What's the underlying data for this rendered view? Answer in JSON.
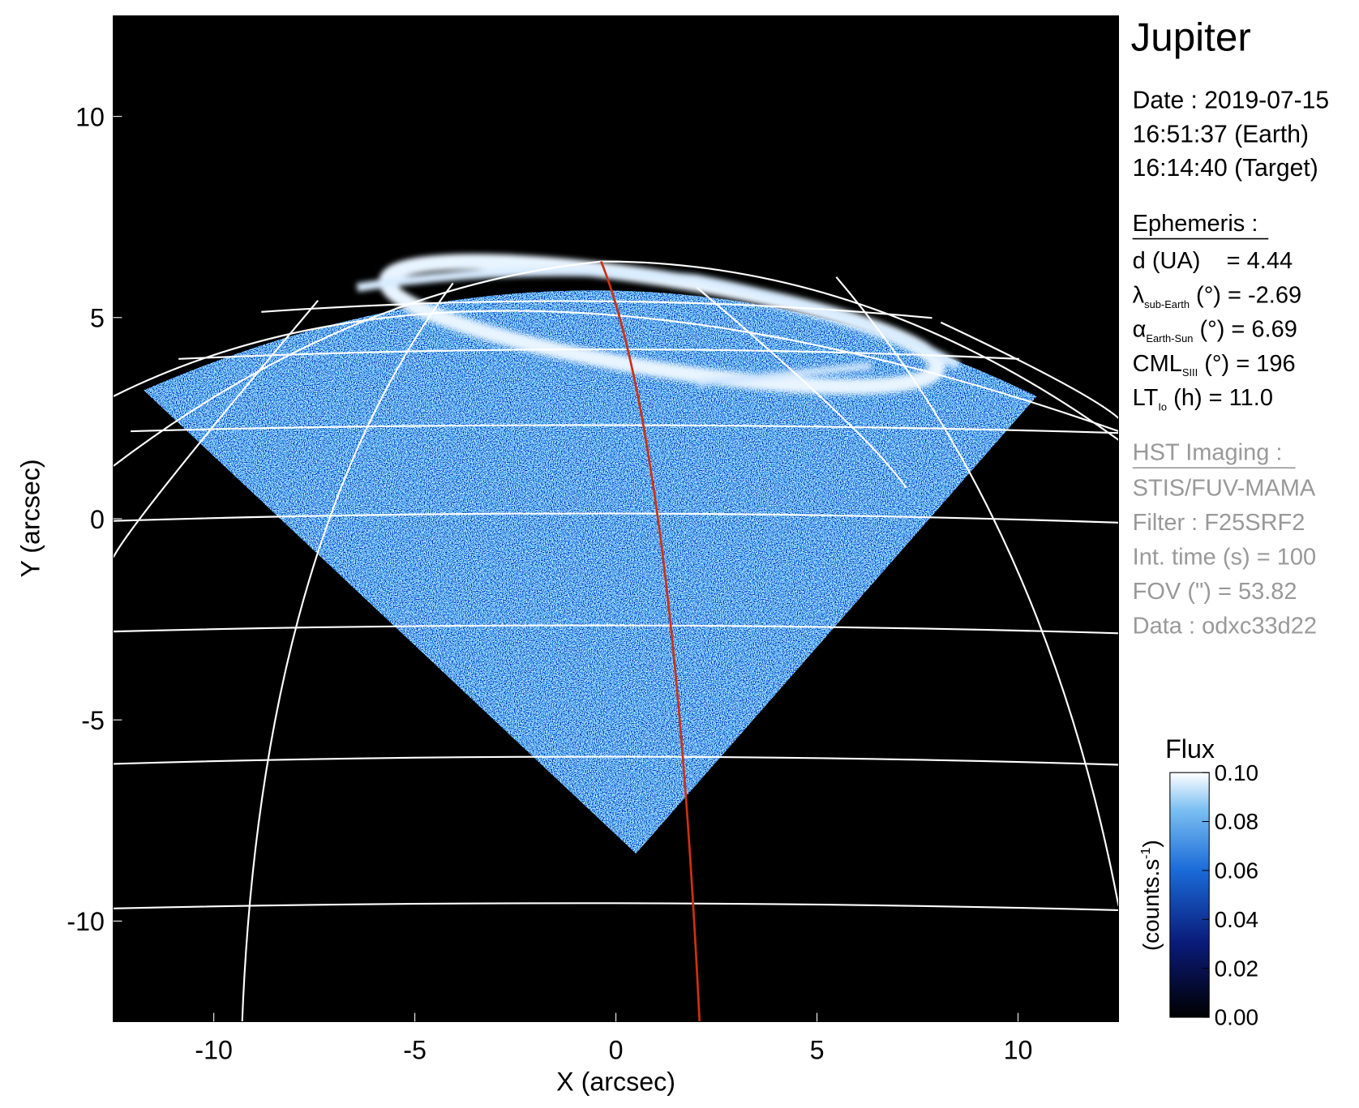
{
  "chart_data": {
    "type": "image",
    "xlabel": "X (arcsec)",
    "ylabel": "Y (arcsec)",
    "xlim": [
      -12.5,
      12.5
    ],
    "ylim": [
      -12.5,
      12.5
    ],
    "xticks": [
      -10,
      -5,
      0,
      5,
      10
    ],
    "yticks": [
      -10,
      -5,
      0,
      5,
      10
    ],
    "colorbar": {
      "title": "Flux",
      "unit_label": "(counts.s",
      "unit_exponent": "-1",
      "unit_close": ")",
      "clim": [
        0,
        0.1
      ],
      "ticks": [
        {
          "value": 0,
          "label": "0.00"
        },
        {
          "value": 0.02,
          "label": "0.02"
        },
        {
          "value": 0.04,
          "label": "0.04"
        },
        {
          "value": 0.06,
          "label": "0.06"
        },
        {
          "value": 0.08,
          "label": "0.08"
        },
        {
          "value": 0.1,
          "label": "0.10"
        }
      ]
    }
  },
  "info": {
    "title": "Jupiter",
    "date_lines": [
      "Date : 2019-07-15",
      "16:51:37 (Earth)",
      "16:14:40 (Target)"
    ],
    "ephemeris_heading": "Ephemeris :",
    "ephemeris": [
      {
        "symbol": "d (UA)",
        "text": "    = 4.44"
      },
      {
        "symbol": "λ",
        "sub": "sub-Earth",
        "text": " (°) = -2.69"
      },
      {
        "symbol": "α",
        "sub": "Earth-Sun",
        "text": " (°) = 6.69"
      },
      {
        "symbol": "CML",
        "sub": "SIII",
        "text": " (°) = 196"
      },
      {
        "symbol": "LT",
        "sub": "Io",
        "text": " (h) = 11.0"
      }
    ],
    "imaging_heading": "HST Imaging :",
    "imaging": [
      "STIS/FUV-MAMA",
      "Filter : F25SRF2",
      "Int. time (s) = 100",
      "FOV (\") = 53.82",
      "Data : odxc33d22"
    ]
  }
}
